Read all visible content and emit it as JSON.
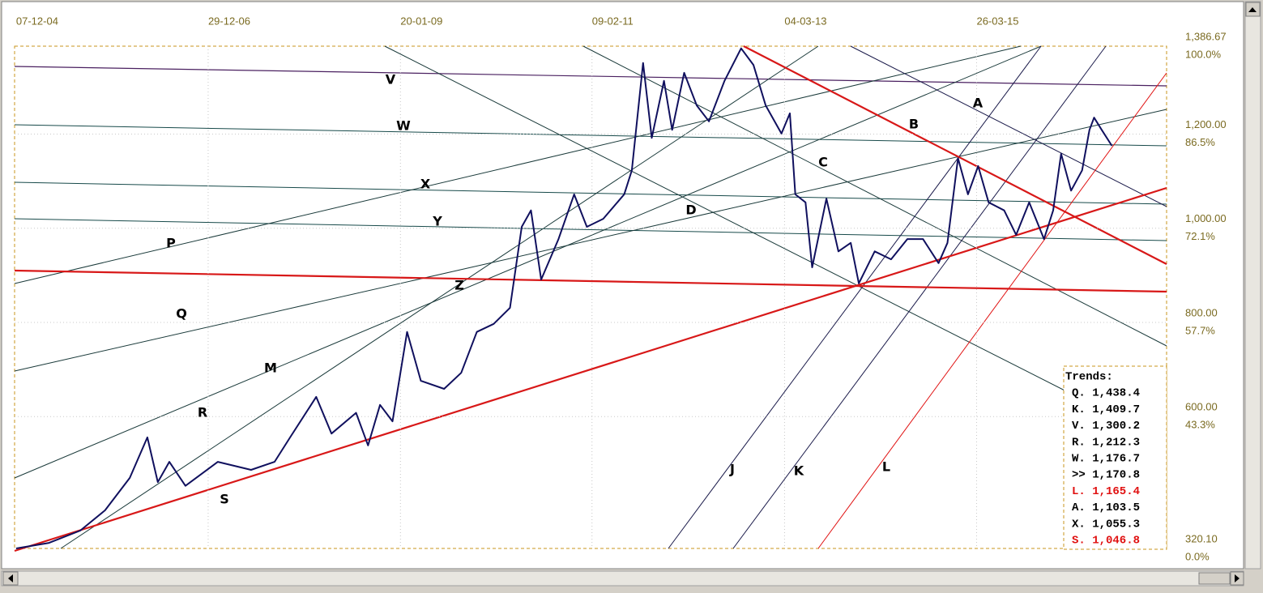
{
  "chart_data": {
    "type": "line",
    "x": [
      "2004-12-07",
      "2005-04-15",
      "2005-08-15",
      "2005-11-20",
      "2006-02-25",
      "2006-05-05",
      "2006-06-15",
      "2006-07-30",
      "2006-10-01",
      "2007-02-05",
      "2007-06-15",
      "2007-09-15",
      "2007-11-15",
      "2008-02-25",
      "2008-04-25",
      "2008-07-30",
      "2008-09-15",
      "2008-11-01",
      "2008-12-20",
      "2009-02-15",
      "2009-04-10",
      "2009-07-10",
      "2009-09-15",
      "2009-11-15",
      "2010-01-20",
      "2010-03-25",
      "2010-05-10",
      "2010-06-15",
      "2010-07-25",
      "2010-10-01",
      "2010-12-01",
      "2011-01-20",
      "2011-03-25",
      "2011-06-15",
      "2011-07-15",
      "2011-08-28",
      "2011-10-01",
      "2011-11-18",
      "2011-12-20",
      "2012-02-05",
      "2012-03-25",
      "2012-05-12",
      "2012-07-12",
      "2012-09-15",
      "2012-11-02",
      "2012-12-20",
      "2013-02-20",
      "2013-03-25",
      "2013-04-15",
      "2013-05-25",
      "2013-06-20",
      "2013-08-15",
      "2013-10-01",
      "2013-11-18",
      "2013-12-20",
      "2014-02-20",
      "2014-04-25",
      "2014-06-28",
      "2014-08-28",
      "2014-10-28",
      "2014-12-02",
      "2015-01-12",
      "2015-02-20",
      "2015-04-01",
      "2015-05-12",
      "2015-07-12",
      "2015-08-28",
      "2015-10-18",
      "2015-12-15",
      "2016-01-20",
      "2016-02-20",
      "2016-03-30",
      "2016-05-12",
      "2016-06-10",
      "2016-06-28",
      "2016-07-28",
      "2016-09-06"
    ],
    "series": [
      {
        "color": "#10105e",
        "values": [
          320.1,
          332,
          358,
          401,
          470,
          556,
          461,
          504,
          453,
          504,
          487,
          504,
          556,
          642,
          564,
          608,
          539,
          625,
          590,
          780,
          676,
          659,
          693,
          780,
          797,
          831,
          1003,
          1038,
          891,
          977,
          1072,
          1003,
          1020,
          1072,
          1123,
          1351,
          1192,
          1313,
          1209,
          1330,
          1261,
          1227,
          1313,
          1382,
          1347,
          1261,
          1201,
          1244,
          1072,
          1055,
          917,
          1063,
          951,
          969,
          883,
          951,
          934,
          977,
          977,
          926,
          969,
          1149,
          1072,
          1132,
          1055,
          1038,
          986,
          1055,
          977,
          1038,
          1158,
          1080,
          1123,
          1209,
          1235,
          1209,
          1175
        ]
      }
    ],
    "xlim": [
      "2004-12-01",
      "2017-04-08"
    ],
    "xticks": [
      {
        "value": "2004-12-07",
        "label": "07-12-04"
      },
      {
        "value": "2006-12-29",
        "label": "29-12-06"
      },
      {
        "value": "2009-01-20",
        "label": "20-01-09"
      },
      {
        "value": "2011-02-09",
        "label": "09-02-11"
      },
      {
        "value": "2013-03-04",
        "label": "04-03-13"
      },
      {
        "value": "2015-03-26",
        "label": "26-03-15"
      }
    ],
    "ylim": [
      320.1,
      1386.67
    ],
    "yticks": [
      {
        "value": 1386.67,
        "label": "1,386.67"
      },
      {
        "value": 1200,
        "label": "1,200.00"
      },
      {
        "value": 1000,
        "label": "1,000.00"
      },
      {
        "value": 800,
        "label": "800.00"
      },
      {
        "value": 600,
        "label": "600.00"
      },
      {
        "value": 320.1,
        "label": "320.10"
      }
    ],
    "pct_ticks": [
      {
        "value": 1386.67,
        "label": "100.0%"
      },
      {
        "value": 1200,
        "label": "86.5%"
      },
      {
        "value": 1000,
        "label": "72.1%"
      },
      {
        "value": 800,
        "label": "57.7%"
      },
      {
        "value": 600,
        "label": "43.3%"
      },
      {
        "value": 320.1,
        "label": "0.0%"
      }
    ],
    "grid": true,
    "annotations": [
      {
        "text": "V",
        "color": "#000"
      },
      {
        "text": "W",
        "color": "#000"
      },
      {
        "text": "X",
        "color": "#000"
      },
      {
        "text": "Y",
        "color": "#000"
      },
      {
        "text": "P",
        "color": "#000"
      },
      {
        "text": "Q",
        "color": "#000"
      },
      {
        "text": "M",
        "color": "#000"
      },
      {
        "text": "R",
        "color": "#000"
      },
      {
        "text": "S",
        "color": "#e01010"
      },
      {
        "text": "Z",
        "color": "#e01010"
      },
      {
        "text": "D",
        "color": "#000"
      },
      {
        "text": "C",
        "color": "#000"
      },
      {
        "text": "B",
        "color": "#e01010"
      },
      {
        "text": "A",
        "color": "#000"
      },
      {
        "text": "J",
        "color": "#000"
      },
      {
        "text": "K",
        "color": "#000"
      },
      {
        "text": "L",
        "color": "#e01010"
      }
    ],
    "trends_title": "Trends:",
    "trends": [
      {
        "text": "Q. 1,438.4",
        "color": "#000"
      },
      {
        "text": "K. 1,409.7",
        "color": "#000"
      },
      {
        "text": "V. 1,300.2",
        "color": "#000"
      },
      {
        "text": "R. 1,212.3",
        "color": "#000"
      },
      {
        "text": "W. 1,176.7",
        "color": "#000"
      },
      {
        "text": ">> 1,170.8",
        "color": "#000"
      },
      {
        "text": "L. 1,165.4",
        "color": "#e01010"
      },
      {
        "text": "A. 1,103.5",
        "color": "#000"
      },
      {
        "text": "X. 1,055.3",
        "color": "#000"
      },
      {
        "text": "S. 1,046.8",
        "color": "#e01010"
      }
    ]
  }
}
